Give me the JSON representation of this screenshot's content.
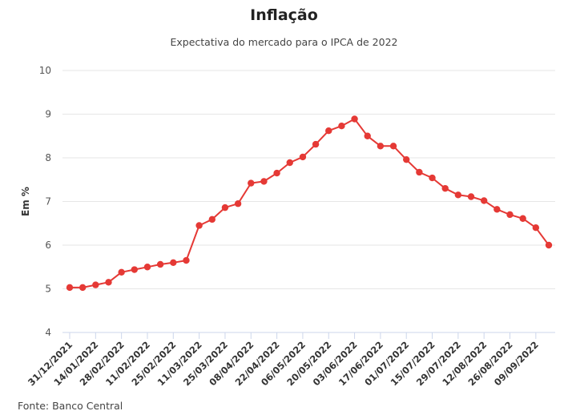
{
  "chart_data": {
    "type": "line",
    "title": "Inflação",
    "subtitle": "Expectativa do mercado para o IPCA de 2022",
    "ylabel": "Em %",
    "xlabel": "",
    "ylim": [
      4,
      10
    ],
    "yticks": [
      4,
      5,
      6,
      7,
      8,
      9,
      10
    ],
    "grid": true,
    "x_tick_labels": [
      "31/12/2021",
      "14/01/2022",
      "28/02/2022",
      "11/02/2022",
      "25/02/2022",
      "11/03/2022",
      "25/03/2022",
      "08/04/2022",
      "22/04/2022",
      "06/05/2022",
      "20/05/2022",
      "03/06/2022",
      "17/06/2022",
      "01/07/2022",
      "15/07/2022",
      "29/07/2022",
      "12/08/2022",
      "26/08/2022",
      "09/09/2022"
    ],
    "series": [
      {
        "color": "#e53935",
        "values": [
          5.03,
          5.03,
          5.09,
          5.15,
          5.38,
          5.44,
          5.5,
          5.56,
          5.6,
          5.65,
          6.45,
          6.59,
          6.86,
          6.95,
          7.42,
          7.46,
          7.65,
          7.89,
          8.02,
          8.31,
          8.62,
          8.73,
          8.89,
          8.5,
          8.27,
          8.27,
          7.96,
          7.67,
          7.54,
          7.3,
          7.15,
          7.11,
          7.02,
          6.82,
          6.7,
          6.61,
          6.4,
          6.0
        ]
      }
    ]
  },
  "source": "Fonte: Banco Central"
}
